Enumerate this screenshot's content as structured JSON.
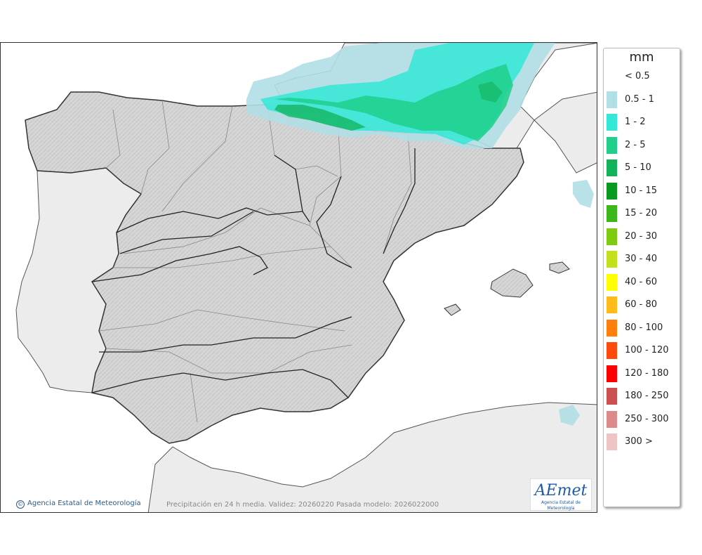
{
  "map": {
    "caption": "Precipitación en 24 h media. Validez: 20260220 Pasada modelo: 2026022000",
    "copyright": "Agencia Estatal de Meteorología",
    "logo": {
      "main": "AEmet",
      "sub": "Agencia Estatal de Meteorología"
    },
    "colors": {
      "sea": "#ffffff",
      "land_spain": "#d8d8d8",
      "land_other": "#ececec"
    }
  },
  "legend": {
    "title": "mm",
    "items": [
      {
        "label": "< 0.5",
        "color": ""
      },
      {
        "label": "0.5 - 1",
        "color": "#b0dfe5"
      },
      {
        "label": "1 - 2",
        "color": "#33e8d6"
      },
      {
        "label": "2 - 5",
        "color": "#1fcf8a"
      },
      {
        "label": "5 - 10",
        "color": "#12b25a"
      },
      {
        "label": "10 - 15",
        "color": "#079a1e"
      },
      {
        "label": "15 - 20",
        "color": "#3db81c"
      },
      {
        "label": "20 - 30",
        "color": "#7dcc10"
      },
      {
        "label": "30 - 40",
        "color": "#c3e01a"
      },
      {
        "label": "40 - 60",
        "color": "#ffff00"
      },
      {
        "label": "60 - 80",
        "color": "#ffbb1a"
      },
      {
        "label": "80 - 100",
        "color": "#ff7f0a"
      },
      {
        "label": "100 - 120",
        "color": "#ff4a0d"
      },
      {
        "label": "120 - 180",
        "color": "#ff0000"
      },
      {
        "label": "180 - 250",
        "color": "#cd5050"
      },
      {
        "label": "250 - 300",
        "color": "#dc8a8a"
      },
      {
        "label": "300 >",
        "color": "#eec4c4"
      }
    ]
  }
}
